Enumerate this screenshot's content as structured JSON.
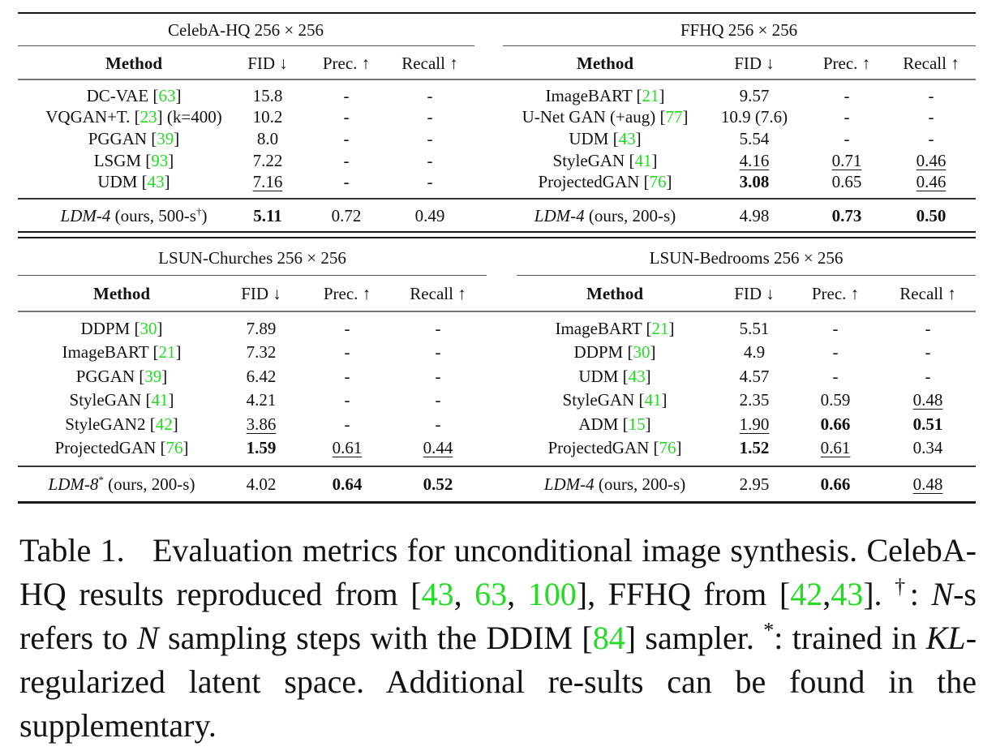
{
  "tables": [
    {
      "title": "CelebA-HQ 256 × 256",
      "headers": [
        "Method",
        "FID ↓",
        "Prec. ↑",
        "Recall ↑"
      ],
      "rows": [
        {
          "method": "DC-VAE",
          "cite": "63",
          "suffix": "",
          "fid": "15.8",
          "prec": "-",
          "recall": "-"
        },
        {
          "method": "VQGAN+T.",
          "cite": "23",
          "suffix": " (k=400)",
          "fid": "10.2",
          "prec": "-",
          "recall": "-"
        },
        {
          "method": "PGGAN",
          "cite": "39",
          "suffix": "",
          "fid": "8.0",
          "prec": "-",
          "recall": "-"
        },
        {
          "method": "LSGM",
          "cite": "93",
          "suffix": "",
          "fid": "7.22",
          "prec": "-",
          "recall": "-"
        },
        {
          "method": "UDM",
          "cite": "43",
          "suffix": "",
          "fid": "7.16",
          "prec": "-",
          "recall": "-",
          "fid_style": "underline"
        }
      ],
      "ours": {
        "name": "LDM-4",
        "mark": "",
        "detail": " (ours, 500-s",
        "detail_sup": "†",
        "detail_end": ")",
        "fid": "5.11",
        "prec": "0.72",
        "recall": "0.49",
        "fid_style": "bold"
      }
    },
    {
      "title": "FFHQ 256 × 256",
      "headers": [
        "Method",
        "FID ↓",
        "Prec. ↑",
        "Recall ↑"
      ],
      "rows": [
        {
          "method": "ImageBART",
          "cite": "21",
          "suffix": "",
          "fid": "9.57",
          "prec": "-",
          "recall": "-"
        },
        {
          "method": "U-Net GAN (+aug)",
          "cite": "77",
          "suffix": "",
          "fid": "10.9 (7.6)",
          "prec": "-",
          "recall": "-"
        },
        {
          "method": "UDM",
          "cite": "43",
          "suffix": "",
          "fid": "5.54",
          "prec": "-",
          "recall": "-"
        },
        {
          "method": "StyleGAN",
          "cite": "41",
          "suffix": "",
          "fid": "4.16",
          "prec": "0.71",
          "recall": "0.46",
          "fid_style": "underline",
          "prec_style": "underline",
          "recall_style": "underline"
        },
        {
          "method": "ProjectedGAN",
          "cite": "76",
          "suffix": "",
          "fid": "3.08",
          "prec": "0.65",
          "recall": "0.46",
          "fid_style": "bold",
          "recall_style": "underline"
        }
      ],
      "ours": {
        "name": "LDM-4",
        "mark": "",
        "detail": " (ours, 200-s)",
        "fid": "4.98",
        "prec": "0.73",
        "recall": "0.50",
        "prec_style": "bold",
        "recall_style": "bold"
      }
    },
    {
      "title": "LSUN-Churches 256 × 256",
      "headers": [
        "Method",
        "FID ↓",
        "Prec. ↑",
        "Recall ↑"
      ],
      "rows": [
        {
          "method": "DDPM",
          "cite": "30",
          "suffix": "",
          "fid": "7.89",
          "prec": "-",
          "recall": "-"
        },
        {
          "method": "ImageBART",
          "cite": "21",
          "suffix": "",
          "fid": "7.32",
          "prec": "-",
          "recall": "-"
        },
        {
          "method": "PGGAN",
          "cite": "39",
          "suffix": "",
          "fid": "6.42",
          "prec": "-",
          "recall": "-"
        },
        {
          "method": "StyleGAN",
          "cite": "41",
          "suffix": "",
          "fid": "4.21",
          "prec": "-",
          "recall": "-"
        },
        {
          "method": "StyleGAN2",
          "cite": "42",
          "suffix": "",
          "fid": "3.86",
          "prec": "-",
          "recall": "-",
          "fid_style": "underline"
        },
        {
          "method": "ProjectedGAN",
          "cite": "76",
          "suffix": "",
          "fid": "1.59",
          "prec": "0.61",
          "recall": "0.44",
          "fid_style": "bold",
          "prec_style": "underline",
          "recall_style": "underline"
        }
      ],
      "ours": {
        "name": "LDM-8",
        "mark": "*",
        "detail": " (ours, 200-s)",
        "fid": "4.02",
        "prec": "0.64",
        "recall": "0.52",
        "prec_style": "bold",
        "recall_style": "bold"
      }
    },
    {
      "title": "LSUN-Bedrooms 256 × 256",
      "headers": [
        "Method",
        "FID ↓",
        "Prec. ↑",
        "Recall ↑"
      ],
      "rows": [
        {
          "method": "ImageBART",
          "cite": "21",
          "suffix": "",
          "fid": "5.51",
          "prec": "-",
          "recall": "-"
        },
        {
          "method": "DDPM",
          "cite": "30",
          "suffix": "",
          "fid": "4.9",
          "prec": "-",
          "recall": "-"
        },
        {
          "method": "UDM",
          "cite": "43",
          "suffix": "",
          "fid": "4.57",
          "prec": "-",
          "recall": "-"
        },
        {
          "method": "StyleGAN",
          "cite": "41",
          "suffix": "",
          "fid": "2.35",
          "prec": "0.59",
          "recall": "0.48",
          "recall_style": "underline"
        },
        {
          "method": "ADM",
          "cite": "15",
          "suffix": "",
          "fid": "1.90",
          "prec": "0.66",
          "recall": "0.51",
          "fid_style": "underline",
          "prec_style": "bold",
          "recall_style": "bold"
        },
        {
          "method": "ProjectedGAN",
          "cite": "76",
          "suffix": "",
          "fid": "1.52",
          "prec": "0.61",
          "recall": "0.34",
          "fid_style": "bold",
          "prec_style": "underline"
        }
      ],
      "ours": {
        "name": "LDM-4",
        "mark": "",
        "detail": " (ours, 200-s)",
        "fid": "2.95",
        "prec": "0.66",
        "recall": "0.48",
        "prec_style": "bold",
        "recall_style": "underline"
      }
    }
  ],
  "caption": {
    "label": "Table 1.",
    "parts": [
      {
        "t": "Evaluation metrics for unconditional image synthesis. CelebA-HQ results reproduced from ["
      },
      {
        "t": "43",
        "cite": true
      },
      {
        "t": ", "
      },
      {
        "t": "63",
        "cite": true
      },
      {
        "t": ", "
      },
      {
        "t": "100",
        "cite": true
      },
      {
        "t": "], FFHQ from ["
      },
      {
        "t": "42",
        "cite": true
      },
      {
        "t": ","
      },
      {
        "t": "43",
        "cite": true
      },
      {
        "t": "]. "
      },
      {
        "t": "†",
        "sup": true
      },
      {
        "t": ": "
      },
      {
        "t": "N",
        "it": true
      },
      {
        "t": "-s refers to "
      },
      {
        "t": "N",
        "it": true
      },
      {
        "t": " sampling steps with the DDIM ["
      },
      {
        "t": "84",
        "cite": true
      },
      {
        "t": "] sampler. "
      },
      {
        "t": "*",
        "sup": true
      },
      {
        "t": ": trained in "
      },
      {
        "t": "KL",
        "it": true
      },
      {
        "t": "-regularized latent space. Additional re-sults can be found in the supplementary."
      }
    ]
  },
  "colors": {
    "cite": "#22dd22",
    "rule": "#1a1a1a"
  }
}
